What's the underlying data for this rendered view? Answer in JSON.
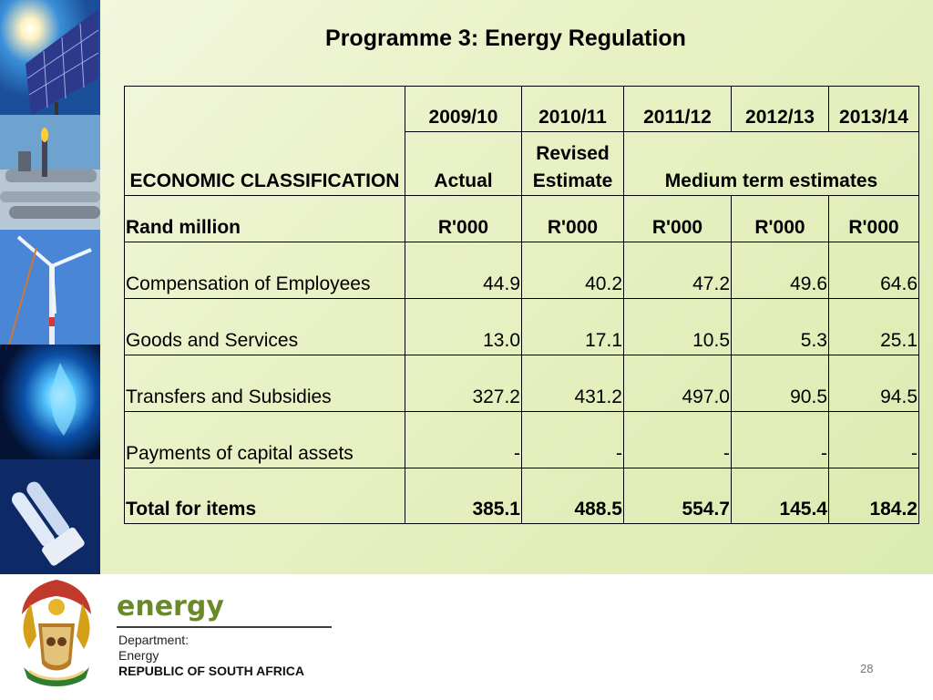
{
  "slide": {
    "title": "Programme 3: Energy Regulation",
    "page_number": "28"
  },
  "photos": [
    "solar-panels-photo",
    "refinery-flare-photo",
    "wind-turbine-photo",
    "gas-flame-photo",
    "energy-saving-bulb-photo"
  ],
  "brand": {
    "word": "energy",
    "department": "Department:",
    "energy": "Energy",
    "country": "REPUBLIC OF SOUTH AFRICA"
  },
  "chart_data": {
    "type": "table",
    "title": "Programme 3: Energy Regulation",
    "header": {
      "classification": "ECONOMIC CLASSIFICATION",
      "years": [
        "2009/10",
        "2010/11",
        "2011/12",
        "2012/13",
        "2013/14"
      ],
      "actual": "Actual",
      "revised": "Revised Estimate",
      "medium": "Medium term estimates",
      "unit_label": "Rand million",
      "units": [
        "R'000",
        "R'000",
        "R'000",
        "R'000",
        "R'000"
      ]
    },
    "rows": [
      {
        "label": "Compensation of Employees",
        "values": [
          "44.9",
          "40.2",
          "47.2",
          "49.6",
          "64.6"
        ]
      },
      {
        "label": "Goods and Services",
        "values": [
          "13.0",
          "17.1",
          "10.5",
          "5.3",
          "25.1"
        ]
      },
      {
        "label": "Transfers and Subsidies",
        "values": [
          "327.2",
          "431.2",
          "497.0",
          "90.5",
          "94.5"
        ]
      },
      {
        "label": "Payments of capital assets",
        "values": [
          "-",
          "-",
          "-",
          "-",
          "-"
        ]
      }
    ],
    "total": {
      "label": "Total for items",
      "values": [
        "385.1",
        "488.5",
        "554.7",
        "145.4",
        "184.2"
      ]
    }
  }
}
